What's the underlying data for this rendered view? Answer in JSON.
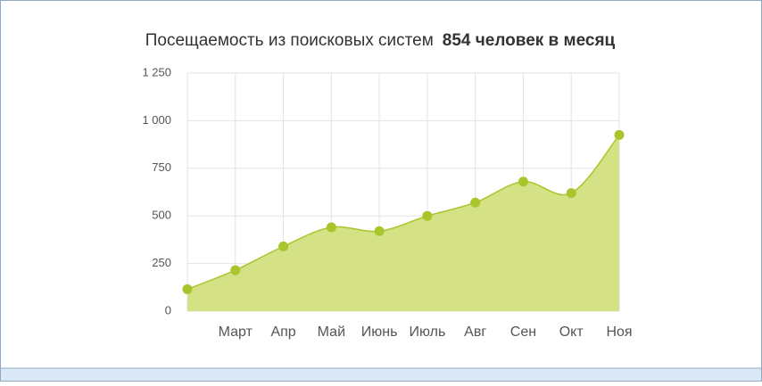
{
  "chart_data": {
    "type": "area",
    "title": "Посещаемость из поисковых систем",
    "title_highlight": "854 человек в месяц",
    "categories": [
      null,
      "Март",
      "Апр",
      "Май",
      "Июнь",
      "Июль",
      "Авг",
      "Сен",
      "Окт",
      "Ноя"
    ],
    "values": [
      115,
      215,
      340,
      440,
      420,
      500,
      570,
      680,
      620,
      925
    ],
    "ylim": [
      0,
      1250
    ],
    "yticks": [
      0,
      250,
      500,
      750,
      {
        "value": 1000,
        "label": "1 000"
      },
      {
        "value": 1250,
        "label": "1 250"
      }
    ],
    "grid": true,
    "color": "#a8c62c",
    "fill_color": "#d5e185"
  }
}
